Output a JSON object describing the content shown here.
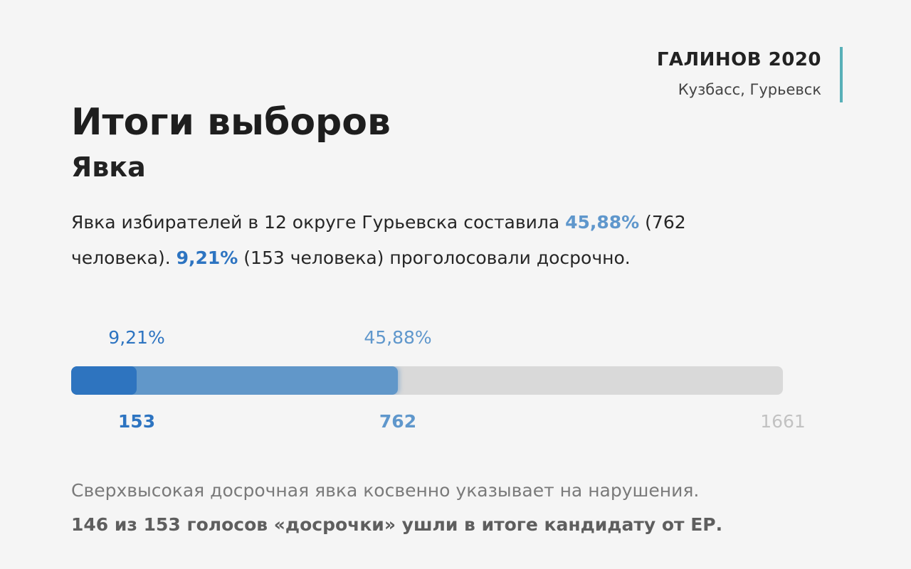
{
  "brand": {
    "title": "ГАЛИНОВ 2020",
    "subtitle": "Кузбасс, Гурьевск",
    "accent_color": "#58b0b8"
  },
  "header": {
    "title": "Итоги выборов",
    "subtitle": "Явка"
  },
  "description": {
    "part1": "Явка избирателей в 12 округе Гурьевска составила ",
    "highlight1": "45,88%",
    "part2": " (762 человека). ",
    "highlight2": "9,21%",
    "part3": " (153 человека) проголосовали досрочно."
  },
  "footnote": {
    "line1": "Сверхвысокая досрочная явка косвенно указывает на нарушения.",
    "line2": "146 из 153 голосов «досрочки» ушли в итоге кандидату от ЕР."
  },
  "chart_data": {
    "type": "bar",
    "orientation": "horizontal-stacked-progress",
    "total": 1661,
    "total_label": "1661",
    "series": [
      {
        "key": "early",
        "value": 153,
        "value_label": "153",
        "percent_label": "9,21%",
        "color": "#2e74bf"
      },
      {
        "key": "total",
        "value": 762,
        "value_label": "762",
        "percent_label": "45,88%",
        "color": "#6197c9"
      }
    ],
    "track_color": "#d9d9d9",
    "max_label_color": "#c2c2c2"
  }
}
